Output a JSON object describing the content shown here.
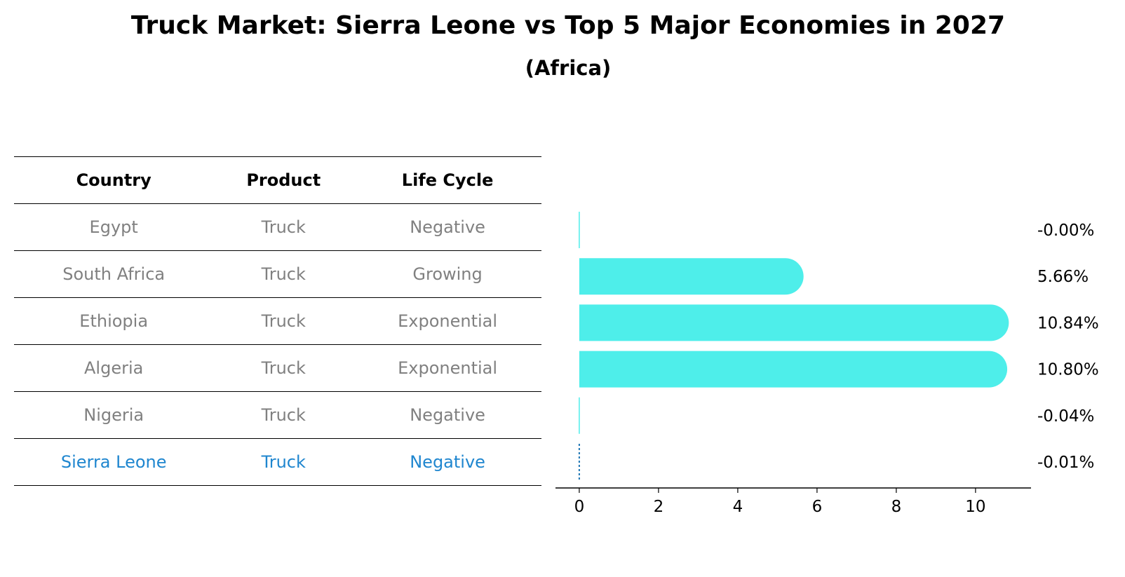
{
  "chart_data": {
    "type": "bar",
    "orientation": "horizontal",
    "title": "Truck Market: Sierra Leone vs Top 5 Major Economies in 2027",
    "subtitle": "(Africa)",
    "categories": [
      "Egypt",
      "South Africa",
      "Ethiopia",
      "Algeria",
      "Nigeria",
      "Sierra Leone"
    ],
    "values": [
      -0.0,
      5.66,
      10.84,
      10.8,
      -0.04,
      -0.01
    ],
    "value_labels": [
      "-0.00%",
      "5.66%",
      "10.84%",
      "10.80%",
      "-0.04%",
      "-0.01%"
    ],
    "xlim": [
      -0.6,
      11.4
    ],
    "xticks": [
      0,
      2,
      4,
      6,
      8,
      10
    ],
    "xlabel": "",
    "ylabel": "",
    "highlight": "Sierra Leone",
    "colors": {
      "bar": "#4eeeea",
      "highlight": "#1f77b4",
      "highlight_text": "#1f86cf",
      "muted_text": "#808080"
    }
  },
  "table": {
    "headers": [
      "Country",
      "Product",
      "Life Cycle"
    ],
    "rows": [
      [
        "Egypt",
        "Truck",
        "Negative"
      ],
      [
        "South Africa",
        "Truck",
        "Growing"
      ],
      [
        "Ethiopia",
        "Truck",
        "Exponential"
      ],
      [
        "Algeria",
        "Truck",
        "Exponential"
      ],
      [
        "Nigeria",
        "Truck",
        "Negative"
      ],
      [
        "Sierra Leone",
        "Truck",
        "Negative"
      ]
    ]
  }
}
